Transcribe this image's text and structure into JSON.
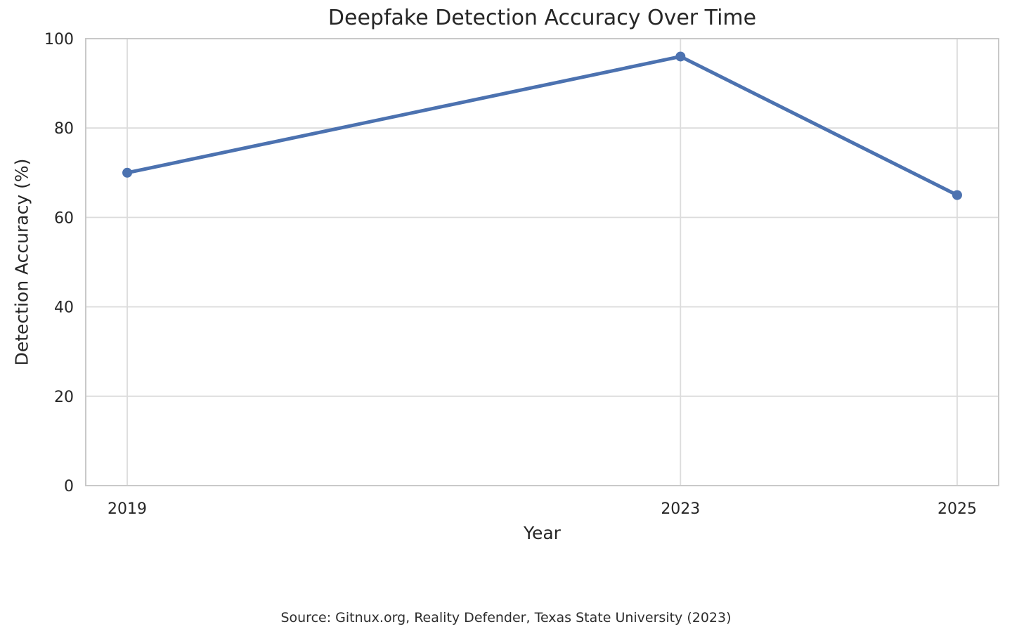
{
  "chart_data": {
    "type": "line",
    "title": "Deepfake Detection Accuracy Over Time",
    "xlabel": "Year",
    "ylabel": "Detection Accuracy (%)",
    "source": "Source: Gitnux.org, Reality Defender, Texas State University (2023)",
    "x": [
      2019,
      2023,
      2025
    ],
    "series": [
      {
        "name": "Detection Accuracy (%)",
        "values": [
          70,
          96,
          65
        ]
      }
    ],
    "xlim": [
      2018.7,
      2025.3
    ],
    "ylim": [
      0,
      100
    ],
    "xticks": {
      "values": [
        2019,
        2023,
        2025
      ],
      "labels": [
        "2019",
        "2023",
        "2025"
      ]
    },
    "yticks": {
      "values": [
        0,
        20,
        40,
        60,
        80,
        100
      ],
      "labels": [
        "0",
        "20",
        "40",
        "60",
        "80",
        "100"
      ]
    },
    "grid": true,
    "legend": "none",
    "marker": "circle",
    "colors": {
      "line": "#4C72B0",
      "grid": "#dcdcdc",
      "spine": "#c9c9c9",
      "text": "#262626",
      "background": "#ffffff"
    }
  }
}
